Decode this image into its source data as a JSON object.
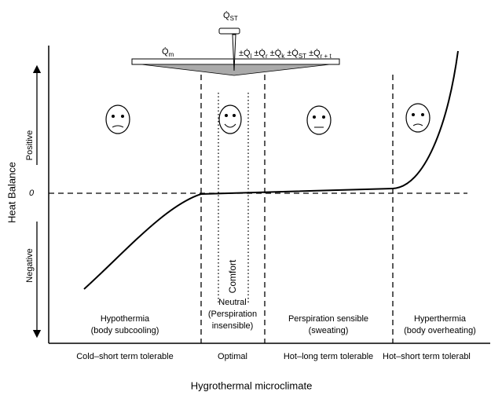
{
  "balance": {
    "top": {
      "symbol": "Q̇",
      "sub": "ST"
    },
    "left": {
      "symbol": "Q̇",
      "sub": "m"
    },
    "right": [
      {
        "symbol": "±Q̇",
        "sub": "l"
      },
      {
        "symbol": "±Q̇",
        "sub": "r"
      },
      {
        "symbol": "±Q̇",
        "sub": "k"
      },
      {
        "symbol": "±Q̇",
        "sub": "ST"
      },
      {
        "symbol": "±Q̇",
        "sub": "r + t"
      }
    ]
  },
  "y_axis": {
    "label": "Heat Balance",
    "positive": "Positive",
    "negative": "Negative",
    "zero": "0"
  },
  "x_axis": {
    "label": "Hygrothermal microclimate"
  },
  "comfort": "Comfort",
  "zones": [
    {
      "lines": [
        "Hypothermia",
        "(body subcooling)"
      ],
      "tolerance": "Cold–short term tolerable"
    },
    {
      "lines": [
        "Neutral",
        "(Perspiration",
        "insensible)"
      ],
      "tolerance": "Optimal"
    },
    {
      "lines": [
        "Perspiration sensible",
        "(sweating)"
      ],
      "tolerance": "Hot–long term tolerable"
    },
    {
      "lines": [
        "Hyperthermia",
        "(body overheating)"
      ],
      "tolerance": "Hot–short term tolerabl"
    }
  ]
}
